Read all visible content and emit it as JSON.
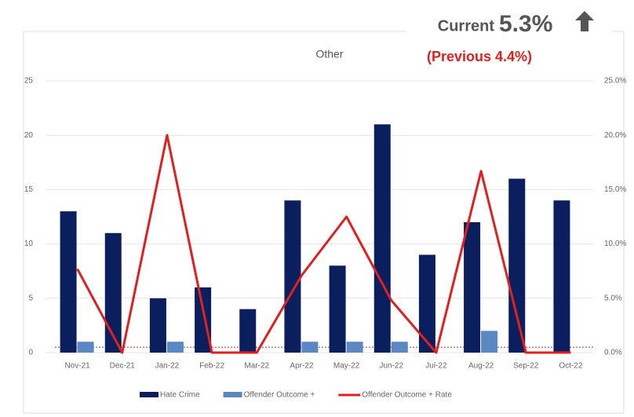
{
  "chart_data": {
    "type": "bar_line",
    "title": "Other",
    "annotations": {
      "current_label": "Current",
      "current_value": "5.3%",
      "previous": "(Previous  4.4%)"
    },
    "categories": [
      "Nov-21",
      "Dec-21",
      "Jan-22",
      "Feb-22",
      "Mar-22",
      "Apr-22",
      "May-22",
      "Jun-22",
      "Jul-22",
      "Aug-22",
      "Sep-22",
      "Oct-22"
    ],
    "series": [
      {
        "name": "Hate Crime",
        "type": "bar",
        "color": "#0b1f5e",
        "values": [
          13,
          11,
          5,
          6,
          4,
          14,
          8,
          21,
          9,
          12,
          16,
          14
        ]
      },
      {
        "name": "Offender Outcome +",
        "type": "bar",
        "color": "#5b87c5",
        "values": [
          1,
          0,
          1,
          0,
          0,
          1,
          1,
          1,
          0,
          2,
          0,
          0
        ]
      },
      {
        "name": "Offender Outcome + Rate",
        "type": "line",
        "axis": "y2",
        "color": "#e0201f",
        "values": [
          7.7,
          0,
          20,
          0,
          0,
          7.1,
          12.5,
          4.8,
          0,
          16.7,
          0,
          0
        ]
      }
    ],
    "reference_line": {
      "value": 0.5,
      "axis": "y2",
      "color": "#e0201f"
    },
    "ylim": [
      0,
      25
    ],
    "yticks": [
      0,
      5,
      10,
      15,
      20,
      25
    ],
    "y2lim": [
      0,
      25
    ],
    "y2ticks": [
      {
        "value": 0,
        "label": "0.0%"
      },
      {
        "value": 5,
        "label": "5.0%"
      },
      {
        "value": 10,
        "label": "10.0%"
      },
      {
        "value": 15,
        "label": "15.0%"
      },
      {
        "value": 20,
        "label": "20.0%"
      },
      {
        "value": 25,
        "label": "25.0%"
      }
    ],
    "grid": true
  }
}
